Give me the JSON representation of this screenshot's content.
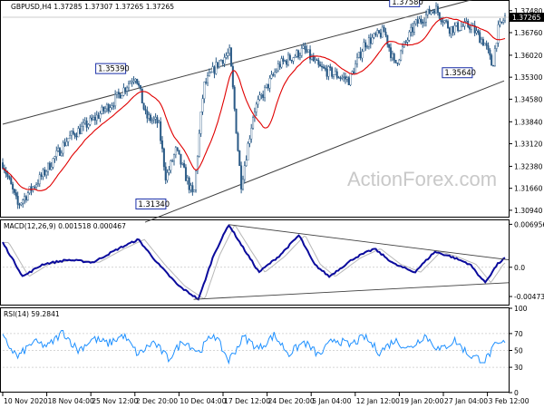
{
  "chart_data": [
    {
      "type": "candlestick",
      "title": "GBPUSD,H4  1.37285 1.37307 1.37265 1.37265",
      "ylim": [
        1.307,
        1.378
      ],
      "y_ticks": [
        "1.37480",
        "1.36760",
        "1.36020",
        "1.35300",
        "1.34580",
        "1.33840",
        "1.33120",
        "1.32380",
        "1.31660",
        "1.30940"
      ],
      "y_tick_values": [
        1.3748,
        1.3676,
        1.3602,
        1.353,
        1.3458,
        1.3384,
        1.3312,
        1.3238,
        1.3166,
        1.3094
      ],
      "current_price": "1.37265",
      "current_price_value": 1.37265,
      "line_color": "#e00000",
      "channel_color": "#404040",
      "annotations": [
        {
          "text": "1.35390",
          "value": 1.3539
        },
        {
          "text": "1.31340",
          "value": 1.3134
        },
        {
          "text": "1.37580",
          "value": 1.3758
        },
        {
          "text": "1.35640",
          "value": 1.3564
        }
      ],
      "price_path": [
        [
          0,
          1.325
        ],
        [
          0.03,
          1.311
        ],
        [
          0.08,
          1.321
        ],
        [
          0.13,
          1.333
        ],
        [
          0.18,
          1.339
        ],
        [
          0.22,
          1.345
        ],
        [
          0.265,
          1.3539
        ],
        [
          0.285,
          1.34
        ],
        [
          0.31,
          1.338
        ],
        [
          0.325,
          1.32
        ],
        [
          0.345,
          1.329
        ],
        [
          0.37,
          1.318
        ],
        [
          0.38,
          1.3134
        ],
        [
          0.4,
          1.35
        ],
        [
          0.43,
          1.358
        ],
        [
          0.452,
          1.361
        ],
        [
          0.47,
          1.326
        ],
        [
          0.475,
          1.318
        ],
        [
          0.5,
          1.342
        ],
        [
          0.55,
          1.357
        ],
        [
          0.6,
          1.362
        ],
        [
          0.63,
          1.356
        ],
        [
          0.66,
          1.354
        ],
        [
          0.69,
          1.352
        ],
        [
          0.72,
          1.364
        ],
        [
          0.76,
          1.368
        ],
        [
          0.78,
          1.357
        ],
        [
          0.82,
          1.37
        ],
        [
          0.86,
          1.3758
        ],
        [
          0.89,
          1.369
        ],
        [
          0.93,
          1.37
        ],
        [
          0.96,
          1.364
        ],
        [
          0.975,
          1.3564
        ],
        [
          0.985,
          1.368
        ],
        [
          1.0,
          1.3727
        ]
      ]
    },
    {
      "type": "line",
      "title": "MACD(12,26,9) 0.001518 0.000467",
      "ylim": [
        -0.0062,
        0.0076
      ],
      "y_ticks": [
        "0.006956",
        "0.0",
        "-0.004736"
      ],
      "y_tick_values": [
        0.006956,
        0.0,
        -0.004736
      ],
      "series": [
        {
          "color": "#0a0a9c",
          "values": [
            [
              0,
              0.004
            ],
            [
              0.04,
              -0.0015
            ],
            [
              0.08,
              0.0005
            ],
            [
              0.13,
              0.0012
            ],
            [
              0.18,
              0.0008
            ],
            [
              0.23,
              0.003
            ],
            [
              0.27,
              0.0045
            ],
            [
              0.31,
              0.0005
            ],
            [
              0.35,
              -0.003
            ],
            [
              0.39,
              -0.0052
            ],
            [
              0.42,
              0.002
            ],
            [
              0.45,
              0.0069
            ],
            [
              0.48,
              0.003
            ],
            [
              0.51,
              -0.0008
            ],
            [
              0.55,
              0.0018
            ],
            [
              0.59,
              0.0052
            ],
            [
              0.62,
              0.0005
            ],
            [
              0.65,
              -0.0015
            ],
            [
              0.7,
              0.0015
            ],
            [
              0.74,
              0.003
            ],
            [
              0.78,
              0.0005
            ],
            [
              0.82,
              -0.0008
            ],
            [
              0.86,
              0.0025
            ],
            [
              0.89,
              0.0018
            ],
            [
              0.93,
              0.0005
            ],
            [
              0.96,
              -0.0025
            ],
            [
              0.985,
              0.0005
            ],
            [
              1.0,
              0.0015
            ]
          ]
        }
      ],
      "trendlines": [
        [
          [
            0.45,
            0.0069
          ],
          [
            1.0,
            0.0012
          ]
        ],
        [
          [
            0.38,
            -0.0052
          ],
          [
            1.0,
            -0.0025
          ]
        ]
      ]
    },
    {
      "type": "line",
      "title": "RSI(14) 59.2841",
      "ylim": [
        0,
        100
      ],
      "y_ticks": [
        "100",
        "70",
        "50",
        "30",
        "0"
      ],
      "y_tick_values": [
        100,
        70,
        50,
        30,
        0
      ],
      "series": [
        {
          "color": "#1e90ff",
          "values": [
            [
              0,
              65
            ],
            [
              0.03,
              42
            ],
            [
              0.06,
              60
            ],
            [
              0.09,
              55
            ],
            [
              0.12,
              72
            ],
            [
              0.15,
              50
            ],
            [
              0.18,
              64
            ],
            [
              0.21,
              58
            ],
            [
              0.24,
              68
            ],
            [
              0.27,
              45
            ],
            [
              0.3,
              60
            ],
            [
              0.33,
              40
            ],
            [
              0.36,
              62
            ],
            [
              0.39,
              48
            ],
            [
              0.42,
              70
            ],
            [
              0.45,
              38
            ],
            [
              0.48,
              66
            ],
            [
              0.51,
              52
            ],
            [
              0.54,
              68
            ],
            [
              0.57,
              46
            ],
            [
              0.6,
              60
            ],
            [
              0.63,
              44
            ],
            [
              0.66,
              64
            ],
            [
              0.69,
              56
            ],
            [
              0.72,
              66
            ],
            [
              0.75,
              48
            ],
            [
              0.78,
              62
            ],
            [
              0.81,
              52
            ],
            [
              0.84,
              68
            ],
            [
              0.87,
              50
            ],
            [
              0.9,
              62
            ],
            [
              0.93,
              44
            ],
            [
              0.96,
              38
            ],
            [
              0.98,
              55
            ],
            [
              1.0,
              59.3
            ]
          ]
        }
      ]
    }
  ],
  "x_axis": {
    "ticks": [
      "10 Nov 2020",
      "18 Nov 04:00",
      "25 Nov 12:00",
      "2 Dec 20:00",
      "10 Dec 04:00",
      "17 Dec 12:00",
      "24 Dec 20:00",
      "5 Jan 04:00",
      "12 Jan 12:00",
      "19 Jan 20:00",
      "27 Jan 04:00",
      "3 Feb 12:00"
    ]
  },
  "watermark": "ActionForex.com"
}
